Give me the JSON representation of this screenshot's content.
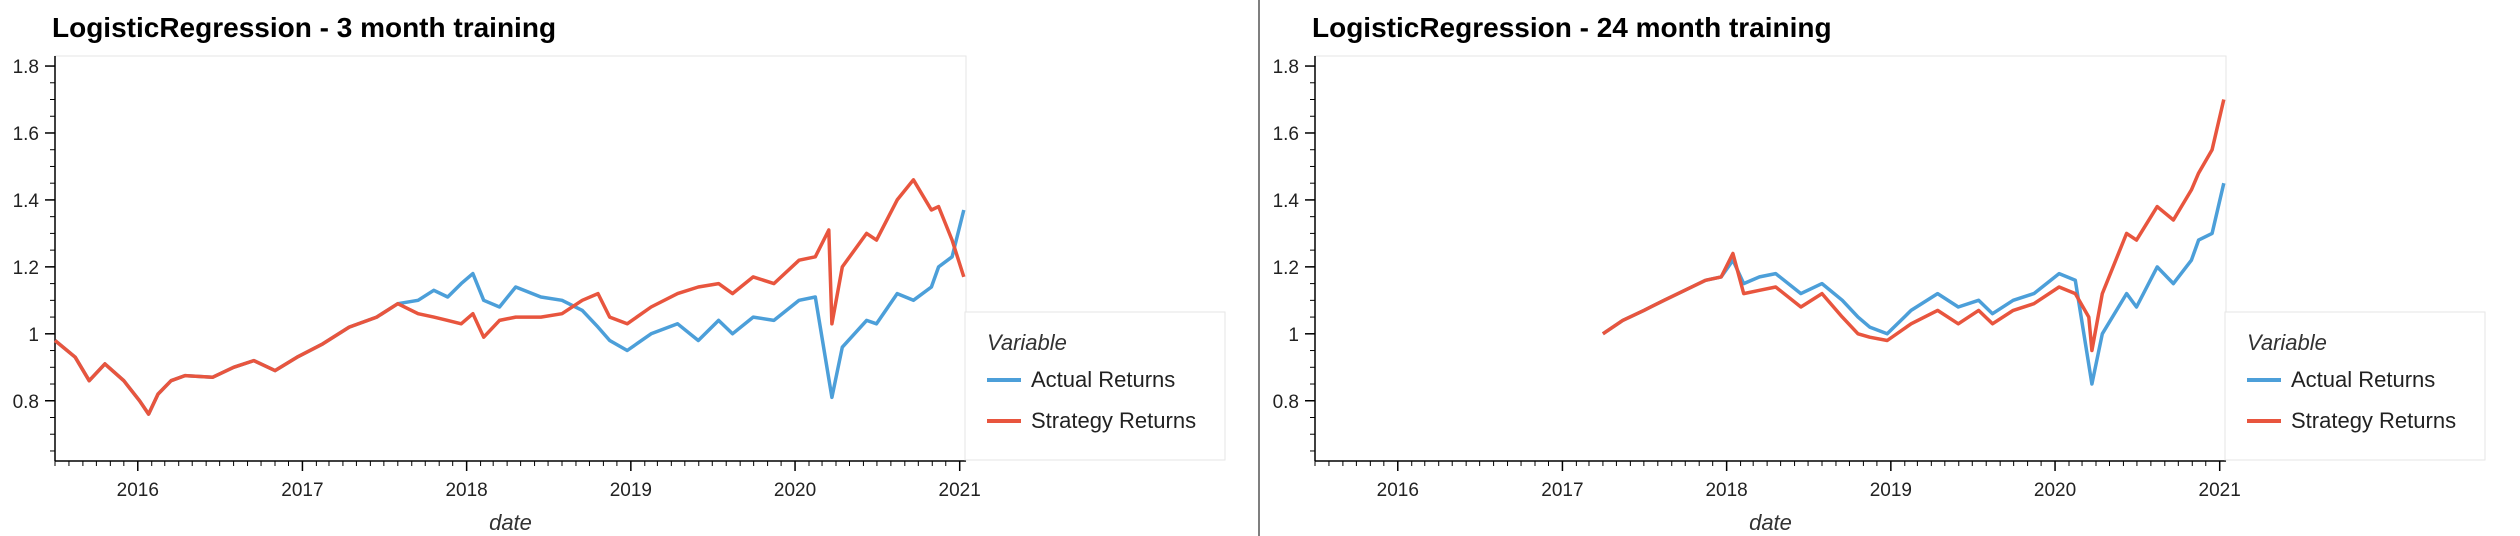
{
  "chart_data": [
    {
      "type": "line",
      "title": "LogisticRegression - 3 month training",
      "xlabel": "date",
      "ylabel": "",
      "x_ticks": [
        "2016",
        "2017",
        "2018",
        "2019",
        "2020",
        "2021"
      ],
      "y_ticks": [
        "0.8",
        "1",
        "1.2",
        "1.4",
        "1.6",
        "1.8"
      ],
      "xlim": [
        "2015-07-01",
        "2021-01-15"
      ],
      "ylim": [
        0.62,
        1.83
      ],
      "legend_title": "Variable",
      "legend_position": "right",
      "series": [
        {
          "name": "Actual Returns",
          "color": "#4c9fd9",
          "x": [
            "2015-07-01",
            "2015-08-15",
            "2015-09-15",
            "2015-10-20",
            "2015-12-01",
            "2016-01-05",
            "2016-01-25",
            "2016-02-15",
            "2016-03-15",
            "2016-04-15",
            "2016-06-15",
            "2016-08-01",
            "2016-09-15",
            "2016-11-01",
            "2016-12-20",
            "2017-02-15",
            "2017-04-15",
            "2017-06-15",
            "2017-08-01",
            "2017-09-15",
            "2017-10-20",
            "2017-11-20",
            "2017-12-20",
            "2018-01-15",
            "2018-02-08",
            "2018-03-15",
            "2018-04-20",
            "2018-06-15",
            "2018-08-01",
            "2018-09-15",
            "2018-10-20",
            "2018-11-15",
            "2018-12-24",
            "2019-02-15",
            "2019-04-15",
            "2019-05-31",
            "2019-07-15",
            "2019-08-15",
            "2019-09-30",
            "2019-11-15",
            "2020-01-10",
            "2020-02-15",
            "2020-03-23",
            "2020-04-15",
            "2020-06-08",
            "2020-06-30",
            "2020-08-15",
            "2020-09-20",
            "2020-10-30",
            "2020-11-15",
            "2020-12-15",
            "2021-01-10"
          ],
          "y": [
            0.98,
            0.93,
            0.86,
            0.91,
            0.86,
            0.8,
            0.76,
            0.82,
            0.86,
            0.875,
            0.87,
            0.9,
            0.92,
            0.89,
            0.93,
            0.97,
            1.02,
            1.05,
            1.09,
            1.1,
            1.13,
            1.11,
            1.15,
            1.18,
            1.1,
            1.08,
            1.14,
            1.11,
            1.1,
            1.07,
            1.02,
            0.98,
            0.95,
            1.0,
            1.03,
            0.98,
            1.04,
            1.0,
            1.05,
            1.04,
            1.1,
            1.11,
            0.81,
            0.96,
            1.04,
            1.03,
            1.12,
            1.1,
            1.14,
            1.2,
            1.23,
            1.37
          ]
        },
        {
          "name": "Strategy Returns",
          "color": "#e8553e",
          "x": [
            "2015-07-01",
            "2015-08-15",
            "2015-09-15",
            "2015-10-20",
            "2015-12-01",
            "2016-01-05",
            "2016-01-25",
            "2016-02-15",
            "2016-03-15",
            "2016-04-15",
            "2016-06-15",
            "2016-08-01",
            "2016-09-15",
            "2016-11-01",
            "2016-12-20",
            "2017-02-15",
            "2017-04-15",
            "2017-06-15",
            "2017-08-01",
            "2017-09-15",
            "2017-10-20",
            "2017-11-20",
            "2017-12-20",
            "2018-01-15",
            "2018-02-08",
            "2018-03-15",
            "2018-04-20",
            "2018-06-15",
            "2018-08-01",
            "2018-09-15",
            "2018-10-20",
            "2018-11-15",
            "2018-12-24",
            "2019-02-15",
            "2019-04-15",
            "2019-05-31",
            "2019-07-15",
            "2019-08-15",
            "2019-09-30",
            "2019-11-15",
            "2020-01-10",
            "2020-02-15",
            "2020-03-16",
            "2020-03-23",
            "2020-04-15",
            "2020-06-08",
            "2020-06-30",
            "2020-08-15",
            "2020-09-20",
            "2020-10-30",
            "2020-11-15",
            "2020-12-15",
            "2021-01-10"
          ],
          "y": [
            0.98,
            0.93,
            0.86,
            0.91,
            0.86,
            0.8,
            0.76,
            0.82,
            0.86,
            0.875,
            0.87,
            0.9,
            0.92,
            0.89,
            0.93,
            0.97,
            1.02,
            1.05,
            1.09,
            1.06,
            1.05,
            1.04,
            1.03,
            1.06,
            0.99,
            1.04,
            1.05,
            1.05,
            1.06,
            1.1,
            1.12,
            1.05,
            1.03,
            1.08,
            1.12,
            1.14,
            1.15,
            1.12,
            1.17,
            1.15,
            1.22,
            1.23,
            1.31,
            1.03,
            1.2,
            1.3,
            1.28,
            1.4,
            1.46,
            1.37,
            1.38,
            1.28,
            1.17
          ]
        }
      ]
    },
    {
      "type": "line",
      "title": "LogisticRegression - 24 month training",
      "xlabel": "date",
      "ylabel": "",
      "x_ticks": [
        "2016",
        "2017",
        "2018",
        "2019",
        "2020",
        "2021"
      ],
      "y_ticks": [
        "0.8",
        "1",
        "1.2",
        "1.4",
        "1.6",
        "1.8"
      ],
      "xlim": [
        "2015-07-01",
        "2021-01-15"
      ],
      "ylim": [
        0.62,
        1.83
      ],
      "legend_title": "Variable",
      "legend_position": "right",
      "series": [
        {
          "name": "Actual Returns",
          "color": "#4c9fd9",
          "x": [
            "2017-04-01",
            "2017-05-15",
            "2017-07-01",
            "2017-08-15",
            "2017-09-30",
            "2017-11-15",
            "2017-12-20",
            "2018-01-15",
            "2018-02-08",
            "2018-03-15",
            "2018-04-20",
            "2018-06-15",
            "2018-08-01",
            "2018-09-15",
            "2018-10-20",
            "2018-11-15",
            "2018-12-24",
            "2019-02-15",
            "2019-04-15",
            "2019-05-31",
            "2019-07-15",
            "2019-08-15",
            "2019-09-30",
            "2019-11-15",
            "2020-01-10",
            "2020-02-15",
            "2020-03-23",
            "2020-04-15",
            "2020-06-08",
            "2020-06-30",
            "2020-08-15",
            "2020-09-20",
            "2020-10-30",
            "2020-11-15",
            "2020-12-15",
            "2021-01-10"
          ],
          "y": [
            1.0,
            1.04,
            1.07,
            1.1,
            1.13,
            1.16,
            1.17,
            1.22,
            1.15,
            1.17,
            1.18,
            1.12,
            1.15,
            1.1,
            1.05,
            1.02,
            1.0,
            1.07,
            1.12,
            1.08,
            1.1,
            1.06,
            1.1,
            1.12,
            1.18,
            1.16,
            0.85,
            1.0,
            1.12,
            1.08,
            1.2,
            1.15,
            1.22,
            1.28,
            1.3,
            1.45
          ]
        },
        {
          "name": "Strategy Returns",
          "color": "#e8553e",
          "x": [
            "2017-04-01",
            "2017-05-15",
            "2017-07-01",
            "2017-08-15",
            "2017-09-30",
            "2017-11-15",
            "2017-12-20",
            "2018-01-15",
            "2018-02-08",
            "2018-03-15",
            "2018-04-20",
            "2018-06-15",
            "2018-08-01",
            "2018-09-15",
            "2018-10-20",
            "2018-11-15",
            "2018-12-24",
            "2019-02-15",
            "2019-04-15",
            "2019-05-31",
            "2019-07-15",
            "2019-08-15",
            "2019-09-30",
            "2019-11-15",
            "2020-01-10",
            "2020-02-15",
            "2020-03-16",
            "2020-03-23",
            "2020-04-15",
            "2020-06-08",
            "2020-06-30",
            "2020-08-15",
            "2020-09-20",
            "2020-10-30",
            "2020-11-15",
            "2020-12-15",
            "2021-01-10"
          ],
          "y": [
            1.0,
            1.04,
            1.07,
            1.1,
            1.13,
            1.16,
            1.17,
            1.24,
            1.12,
            1.13,
            1.14,
            1.08,
            1.12,
            1.05,
            1.0,
            0.99,
            0.98,
            1.03,
            1.07,
            1.03,
            1.07,
            1.03,
            1.07,
            1.09,
            1.14,
            1.12,
            1.05,
            0.95,
            1.12,
            1.3,
            1.28,
            1.38,
            1.34,
            1.43,
            1.48,
            1.55,
            1.7
          ]
        }
      ]
    }
  ]
}
